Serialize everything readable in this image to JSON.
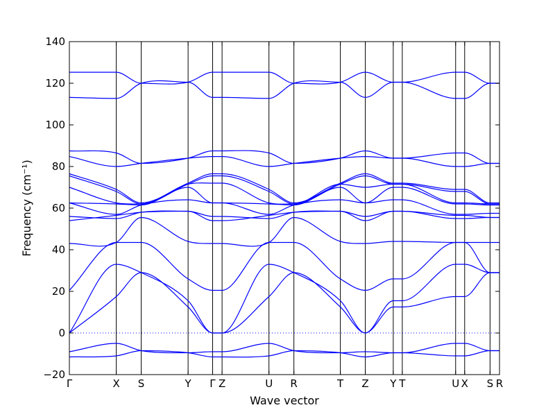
{
  "chart_data": {
    "type": "line",
    "xlabel": "Wave vector",
    "ylabel": "Frequency (cm⁻¹)",
    "ylim": [
      -20,
      140
    ],
    "yticks": [
      -20,
      0,
      20,
      40,
      60,
      80,
      100,
      120,
      140
    ],
    "grid": false,
    "line_color": "#0000ff",
    "zero_line_color": "#0000ff",
    "high_symmetry_points": [
      {
        "label": "Γ",
        "x": 0.0
      },
      {
        "label": "X",
        "x": 0.109
      },
      {
        "label": "S",
        "x": 0.167
      },
      {
        "label": "Y",
        "x": 0.276
      },
      {
        "label": "Γ",
        "x": 0.333
      },
      {
        "label": "Z",
        "x": 0.355
      },
      {
        "label": "U",
        "x": 0.464
      },
      {
        "label": "R",
        "x": 0.522
      },
      {
        "label": "T",
        "x": 0.63
      },
      {
        "label": "Z",
        "x": 0.688
      },
      {
        "label": "Y",
        "x": 0.753
      },
      {
        "label": "T",
        "x": 0.774
      },
      {
        "label": "U",
        "x": 0.898
      },
      {
        "label": "X",
        "x": 0.919
      },
      {
        "label": "S",
        "x": 0.978
      },
      {
        "label": "R",
        "x": 1.0
      }
    ],
    "series": [
      {
        "values": [
          [
            0,
            125.3
          ],
          [
            0.109,
            125.3
          ],
          [
            0.167,
            120.0
          ],
          [
            0.276,
            120.5
          ],
          [
            0.333,
            125.3
          ],
          [
            0.355,
            125.3
          ],
          [
            0.464,
            125.3
          ],
          [
            0.522,
            120.0
          ],
          [
            0.63,
            120.5
          ],
          [
            0.688,
            125.3
          ],
          [
            0.753,
            120.5
          ],
          [
            0.774,
            120.5
          ],
          [
            0.898,
            125.3
          ],
          [
            0.919,
            125.3
          ],
          [
            0.978,
            120.0
          ],
          [
            1,
            120.0
          ]
        ]
      },
      {
        "values": [
          [
            0,
            113.2
          ],
          [
            0.109,
            112.7
          ],
          [
            0.167,
            120.0
          ],
          [
            0.276,
            120.5
          ],
          [
            0.333,
            113.2
          ],
          [
            0.355,
            113.2
          ],
          [
            0.464,
            112.7
          ],
          [
            0.522,
            120.0
          ],
          [
            0.63,
            120.5
          ],
          [
            0.688,
            113.2
          ],
          [
            0.753,
            120.5
          ],
          [
            0.774,
            120.5
          ],
          [
            0.898,
            112.7
          ],
          [
            0.919,
            112.7
          ],
          [
            0.978,
            120.0
          ],
          [
            1,
            120.0
          ]
        ]
      },
      {
        "values": [
          [
            0,
            87.5
          ],
          [
            0.109,
            86.5
          ],
          [
            0.167,
            81.5
          ],
          [
            0.276,
            84.0
          ],
          [
            0.333,
            87.5
          ],
          [
            0.355,
            87.5
          ],
          [
            0.464,
            86.5
          ],
          [
            0.522,
            81.5
          ],
          [
            0.63,
            84.0
          ],
          [
            0.688,
            87.5
          ],
          [
            0.753,
            84.0
          ],
          [
            0.774,
            84.0
          ],
          [
            0.898,
            86.5
          ],
          [
            0.919,
            86.5
          ],
          [
            0.978,
            81.5
          ],
          [
            1,
            81.5
          ]
        ]
      },
      {
        "values": [
          [
            0,
            84.8
          ],
          [
            0.109,
            80.0
          ],
          [
            0.167,
            81.5
          ],
          [
            0.276,
            84.0
          ],
          [
            0.333,
            84.8
          ],
          [
            0.355,
            84.8
          ],
          [
            0.464,
            80.0
          ],
          [
            0.522,
            81.5
          ],
          [
            0.63,
            84.0
          ],
          [
            0.688,
            84.8
          ],
          [
            0.753,
            84.0
          ],
          [
            0.774,
            84.0
          ],
          [
            0.898,
            80.0
          ],
          [
            0.919,
            80.0
          ],
          [
            0.978,
            81.5
          ],
          [
            1,
            81.5
          ]
        ]
      },
      {
        "values": [
          [
            0,
            76.5
          ],
          [
            0.109,
            69.0
          ],
          [
            0.167,
            62.5
          ],
          [
            0.276,
            72.0
          ],
          [
            0.333,
            76.5
          ],
          [
            0.355,
            76.5
          ],
          [
            0.464,
            69.0
          ],
          [
            0.522,
            62.5
          ],
          [
            0.63,
            72.0
          ],
          [
            0.688,
            76.5
          ],
          [
            0.753,
            72.0
          ],
          [
            0.774,
            72.0
          ],
          [
            0.898,
            69.0
          ],
          [
            0.919,
            69.0
          ],
          [
            0.978,
            62.5
          ],
          [
            1,
            62.5
          ]
        ]
      },
      {
        "values": [
          [
            0,
            75.5
          ],
          [
            0.109,
            68.0
          ],
          [
            0.167,
            62.0
          ],
          [
            0.276,
            71.5
          ],
          [
            0.333,
            75.5
          ],
          [
            0.355,
            75.5
          ],
          [
            0.464,
            68.0
          ],
          [
            0.522,
            62.0
          ],
          [
            0.63,
            71.5
          ],
          [
            0.688,
            75.5
          ],
          [
            0.753,
            71.5
          ],
          [
            0.774,
            71.5
          ],
          [
            0.898,
            68.0
          ],
          [
            0.919,
            68.0
          ],
          [
            0.978,
            62.0
          ],
          [
            1,
            62.0
          ]
        ]
      },
      {
        "values": [
          [
            0,
            70.0
          ],
          [
            0.109,
            62.5
          ],
          [
            0.167,
            62.0
          ],
          [
            0.276,
            71.5
          ],
          [
            0.333,
            72.0
          ],
          [
            0.355,
            72.0
          ],
          [
            0.464,
            62.5
          ],
          [
            0.522,
            62.0
          ],
          [
            0.63,
            71.5
          ],
          [
            0.688,
            70.0
          ],
          [
            0.753,
            71.5
          ],
          [
            0.774,
            71.5
          ],
          [
            0.898,
            62.5
          ],
          [
            0.919,
            62.5
          ],
          [
            0.978,
            62.0
          ],
          [
            1,
            62.0
          ]
        ]
      },
      {
        "values": [
          [
            0,
            62.5
          ],
          [
            0.109,
            62.0
          ],
          [
            0.167,
            61.5
          ],
          [
            0.276,
            70.0
          ],
          [
            0.333,
            62.5
          ],
          [
            0.355,
            62.5
          ],
          [
            0.464,
            62.0
          ],
          [
            0.522,
            61.5
          ],
          [
            0.63,
            70.0
          ],
          [
            0.688,
            62.5
          ],
          [
            0.753,
            70.0
          ],
          [
            0.774,
            70.0
          ],
          [
            0.898,
            62.0
          ],
          [
            0.919,
            62.0
          ],
          [
            0.978,
            61.5
          ],
          [
            1,
            61.5
          ]
        ]
      },
      {
        "values": [
          [
            0,
            62.5
          ],
          [
            0.109,
            57.0
          ],
          [
            0.167,
            61.5
          ],
          [
            0.276,
            64.0
          ],
          [
            0.333,
            62.5
          ],
          [
            0.355,
            62.5
          ],
          [
            0.464,
            57.0
          ],
          [
            0.522,
            61.5
          ],
          [
            0.63,
            64.0
          ],
          [
            0.688,
            62.5
          ],
          [
            0.753,
            64.0
          ],
          [
            0.774,
            64.0
          ],
          [
            0.898,
            57.0
          ],
          [
            0.919,
            57.0
          ],
          [
            0.978,
            57.5
          ],
          [
            1,
            57.5
          ]
        ]
      },
      {
        "values": [
          [
            0,
            56.0
          ],
          [
            0.109,
            55.0
          ],
          [
            0.167,
            58.0
          ],
          [
            0.276,
            58.5
          ],
          [
            0.333,
            56.0
          ],
          [
            0.355,
            56.0
          ],
          [
            0.464,
            55.0
          ],
          [
            0.522,
            58.0
          ],
          [
            0.63,
            58.5
          ],
          [
            0.688,
            56.0
          ],
          [
            0.753,
            58.5
          ],
          [
            0.774,
            58.5
          ],
          [
            0.898,
            55.0
          ],
          [
            0.919,
            55.0
          ],
          [
            0.978,
            55.5
          ],
          [
            1,
            55.5
          ]
        ]
      },
      {
        "values": [
          [
            0,
            54.0
          ],
          [
            0.109,
            56.5
          ],
          [
            0.167,
            58.0
          ],
          [
            0.276,
            58.5
          ],
          [
            0.333,
            54.0
          ],
          [
            0.355,
            54.0
          ],
          [
            0.464,
            56.5
          ],
          [
            0.522,
            58.0
          ],
          [
            0.63,
            58.5
          ],
          [
            0.688,
            54.0
          ],
          [
            0.753,
            58.5
          ],
          [
            0.774,
            58.5
          ],
          [
            0.898,
            56.5
          ],
          [
            0.919,
            56.5
          ],
          [
            0.978,
            55.5
          ],
          [
            1,
            55.5
          ]
        ]
      },
      {
        "values": [
          [
            0,
            43.0
          ],
          [
            0.109,
            43.5
          ],
          [
            0.167,
            55.5
          ],
          [
            0.276,
            44.0
          ],
          [
            0.333,
            43.0
          ],
          [
            0.355,
            43.0
          ],
          [
            0.464,
            43.5
          ],
          [
            0.522,
            55.5
          ],
          [
            0.63,
            44.0
          ],
          [
            0.688,
            43.0
          ],
          [
            0.753,
            44.0
          ],
          [
            0.774,
            44.0
          ],
          [
            0.898,
            43.5
          ],
          [
            0.919,
            43.5
          ],
          [
            0.978,
            43.5
          ],
          [
            1,
            43.5
          ]
        ]
      },
      {
        "values": [
          [
            0,
            20.5
          ],
          [
            0.109,
            43.5
          ],
          [
            0.167,
            43.5
          ],
          [
            0.276,
            26.0
          ],
          [
            0.333,
            20.5
          ],
          [
            0.355,
            20.5
          ],
          [
            0.464,
            43.5
          ],
          [
            0.522,
            43.5
          ],
          [
            0.63,
            26.0
          ],
          [
            0.688,
            20.5
          ],
          [
            0.753,
            26.0
          ],
          [
            0.774,
            26.0
          ],
          [
            0.898,
            43.5
          ],
          [
            0.919,
            43.5
          ],
          [
            0.978,
            29.0
          ],
          [
            1,
            29.0
          ]
        ]
      },
      {
        "values": [
          [
            0,
            0.0
          ],
          [
            0.109,
            33.0
          ],
          [
            0.167,
            29.0
          ],
          [
            0.276,
            15.5
          ],
          [
            0.333,
            0.0
          ],
          [
            0.355,
            0.0
          ],
          [
            0.464,
            33.0
          ],
          [
            0.522,
            29.0
          ],
          [
            0.63,
            15.5
          ],
          [
            0.688,
            0.0
          ],
          [
            0.753,
            15.5
          ],
          [
            0.774,
            15.5
          ],
          [
            0.898,
            33.0
          ],
          [
            0.919,
            33.0
          ],
          [
            0.978,
            29.0
          ],
          [
            1,
            29.0
          ]
        ]
      },
      {
        "values": [
          [
            0,
            0.0
          ],
          [
            0.109,
            17.5
          ],
          [
            0.167,
            29.0
          ],
          [
            0.276,
            12.5
          ],
          [
            0.333,
            0.0
          ],
          [
            0.355,
            0.0
          ],
          [
            0.464,
            17.5
          ],
          [
            0.522,
            29.0
          ],
          [
            0.63,
            12.5
          ],
          [
            0.688,
            0.0
          ],
          [
            0.753,
            12.5
          ],
          [
            0.774,
            12.5
          ],
          [
            0.898,
            17.5
          ],
          [
            0.919,
            17.5
          ],
          [
            0.978,
            29.0
          ],
          [
            1,
            29.0
          ]
        ]
      },
      {
        "values": [
          [
            0,
            -9.0
          ],
          [
            0.109,
            -5.0
          ],
          [
            0.167,
            -8.5
          ],
          [
            0.276,
            -9.5
          ],
          [
            0.333,
            -9.0
          ],
          [
            0.355,
            -9.0
          ],
          [
            0.464,
            -5.0
          ],
          [
            0.522,
            -8.5
          ],
          [
            0.63,
            -9.5
          ],
          [
            0.688,
            -9.0
          ],
          [
            0.753,
            -9.5
          ],
          [
            0.774,
            -9.5
          ],
          [
            0.898,
            -5.0
          ],
          [
            0.919,
            -5.0
          ],
          [
            0.978,
            -8.5
          ],
          [
            1,
            -8.5
          ]
        ]
      },
      {
        "values": [
          [
            0,
            -11.5
          ],
          [
            0.109,
            -11.0
          ],
          [
            0.167,
            -8.5
          ],
          [
            0.276,
            -9.5
          ],
          [
            0.333,
            -11.5
          ],
          [
            0.355,
            -11.5
          ],
          [
            0.464,
            -11.0
          ],
          [
            0.522,
            -8.5
          ],
          [
            0.63,
            -9.5
          ],
          [
            0.688,
            -11.5
          ],
          [
            0.753,
            -9.5
          ],
          [
            0.774,
            -9.5
          ],
          [
            0.898,
            -11.0
          ],
          [
            0.919,
            -11.0
          ],
          [
            0.978,
            -8.5
          ],
          [
            1,
            -8.5
          ]
        ]
      }
    ]
  }
}
